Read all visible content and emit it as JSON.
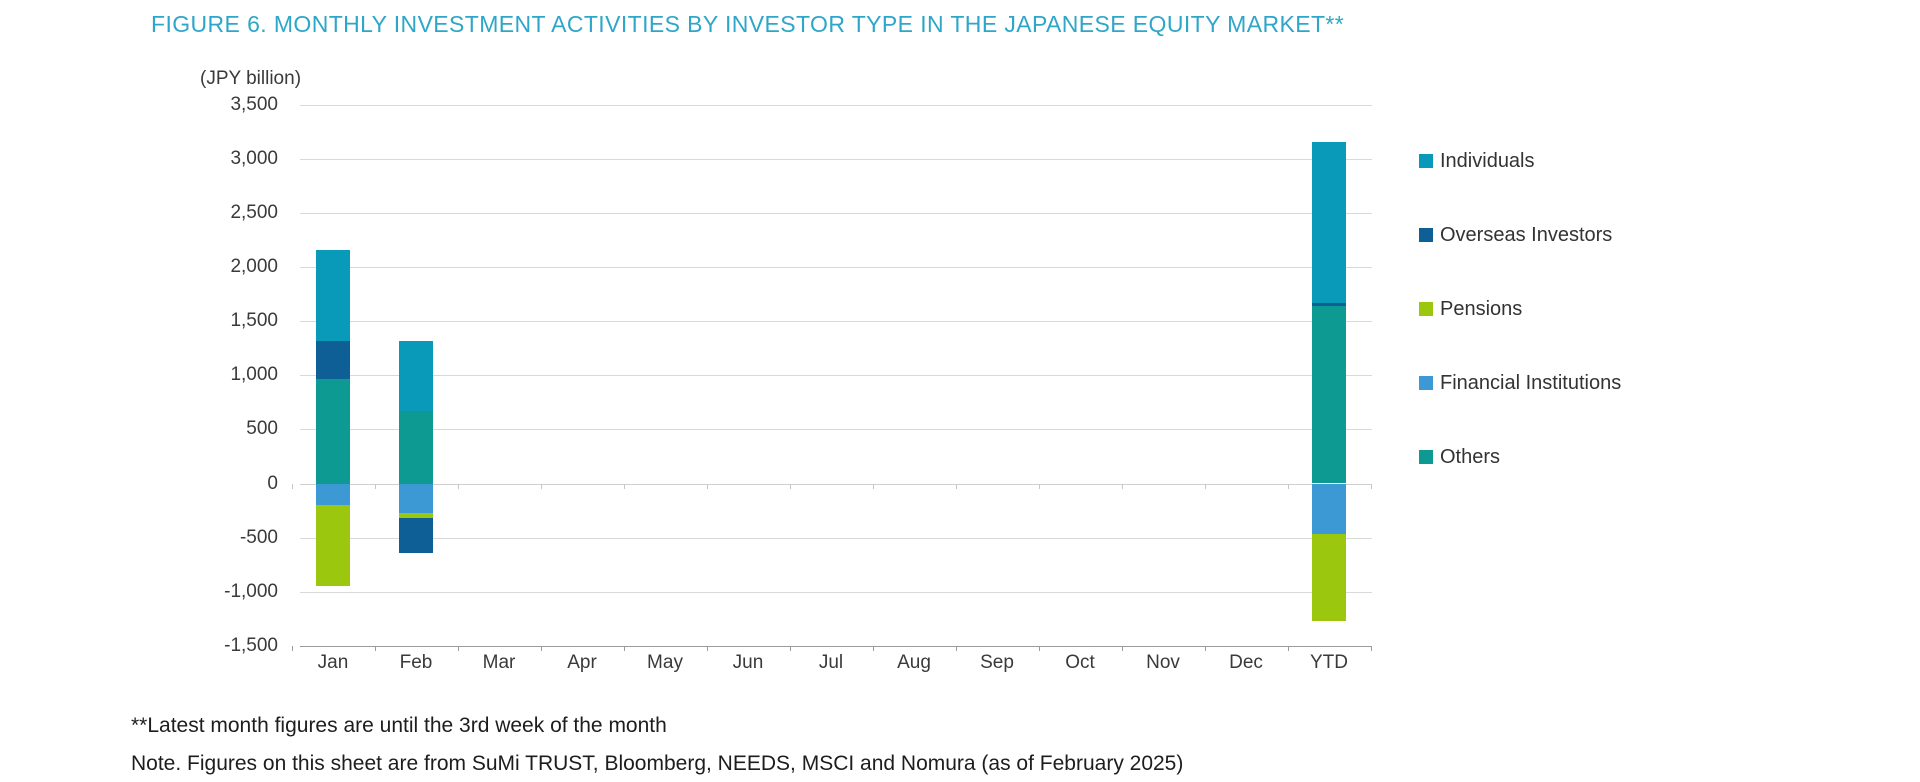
{
  "title": "FIGURE 6. MONTHLY INVESTMENT ACTIVITIES BY INVESTOR TYPE IN THE JAPANESE EQUITY MARKET**",
  "footnotes": {
    "line1": "**Latest month figures are until the 3rd week of the month",
    "line2": "Note. Figures on this sheet are from SuMi TRUST, Bloomberg, NEEDS, MSCI and Nomura (as of February 2025)"
  },
  "chart_data": {
    "type": "bar",
    "stacked": true,
    "title": "FIGURE 6. MONTHLY INVESTMENT ACTIVITIES BY INVESTOR TYPE IN THE JAPANESE EQUITY MARKET**",
    "unit_label": "(JPY billion)",
    "xlabel": "",
    "ylabel": "(JPY billion)",
    "categories": [
      "Jan",
      "Feb",
      "Mar",
      "Apr",
      "May",
      "Jun",
      "Jul",
      "Aug",
      "Sep",
      "Oct",
      "Nov",
      "Dec",
      "YTD"
    ],
    "series": [
      {
        "name": "Individuals",
        "color": "#0a9ab9",
        "values": [
          840,
          650,
          null,
          null,
          null,
          null,
          null,
          null,
          null,
          null,
          null,
          null,
          1490
        ]
      },
      {
        "name": "Overseas Investors",
        "color": "#0f5f97",
        "values": [
          350,
          -320,
          null,
          null,
          null,
          null,
          null,
          null,
          null,
          null,
          null,
          null,
          30
        ]
      },
      {
        "name": "Pensions",
        "color": "#9cc70f",
        "values": [
          -750,
          -50,
          null,
          null,
          null,
          null,
          null,
          null,
          null,
          null,
          null,
          null,
          -800
        ]
      },
      {
        "name": "Financial Institutions",
        "color": "#3d99d3",
        "values": [
          -200,
          -270,
          null,
          null,
          null,
          null,
          null,
          null,
          null,
          null,
          null,
          null,
          -470
        ]
      },
      {
        "name": "Others",
        "color": "#0d9a92",
        "values": [
          970,
          670,
          null,
          null,
          null,
          null,
          null,
          null,
          null,
          null,
          null,
          null,
          1640
        ]
      }
    ],
    "stack_order_from_axis": [
      "Others",
      "Financial Institutions",
      "Pensions",
      "Overseas Investors",
      "Individuals"
    ],
    "ylim": [
      -1500,
      3500
    ],
    "ytick_step": 500,
    "grid": true,
    "legend_position": "right"
  }
}
